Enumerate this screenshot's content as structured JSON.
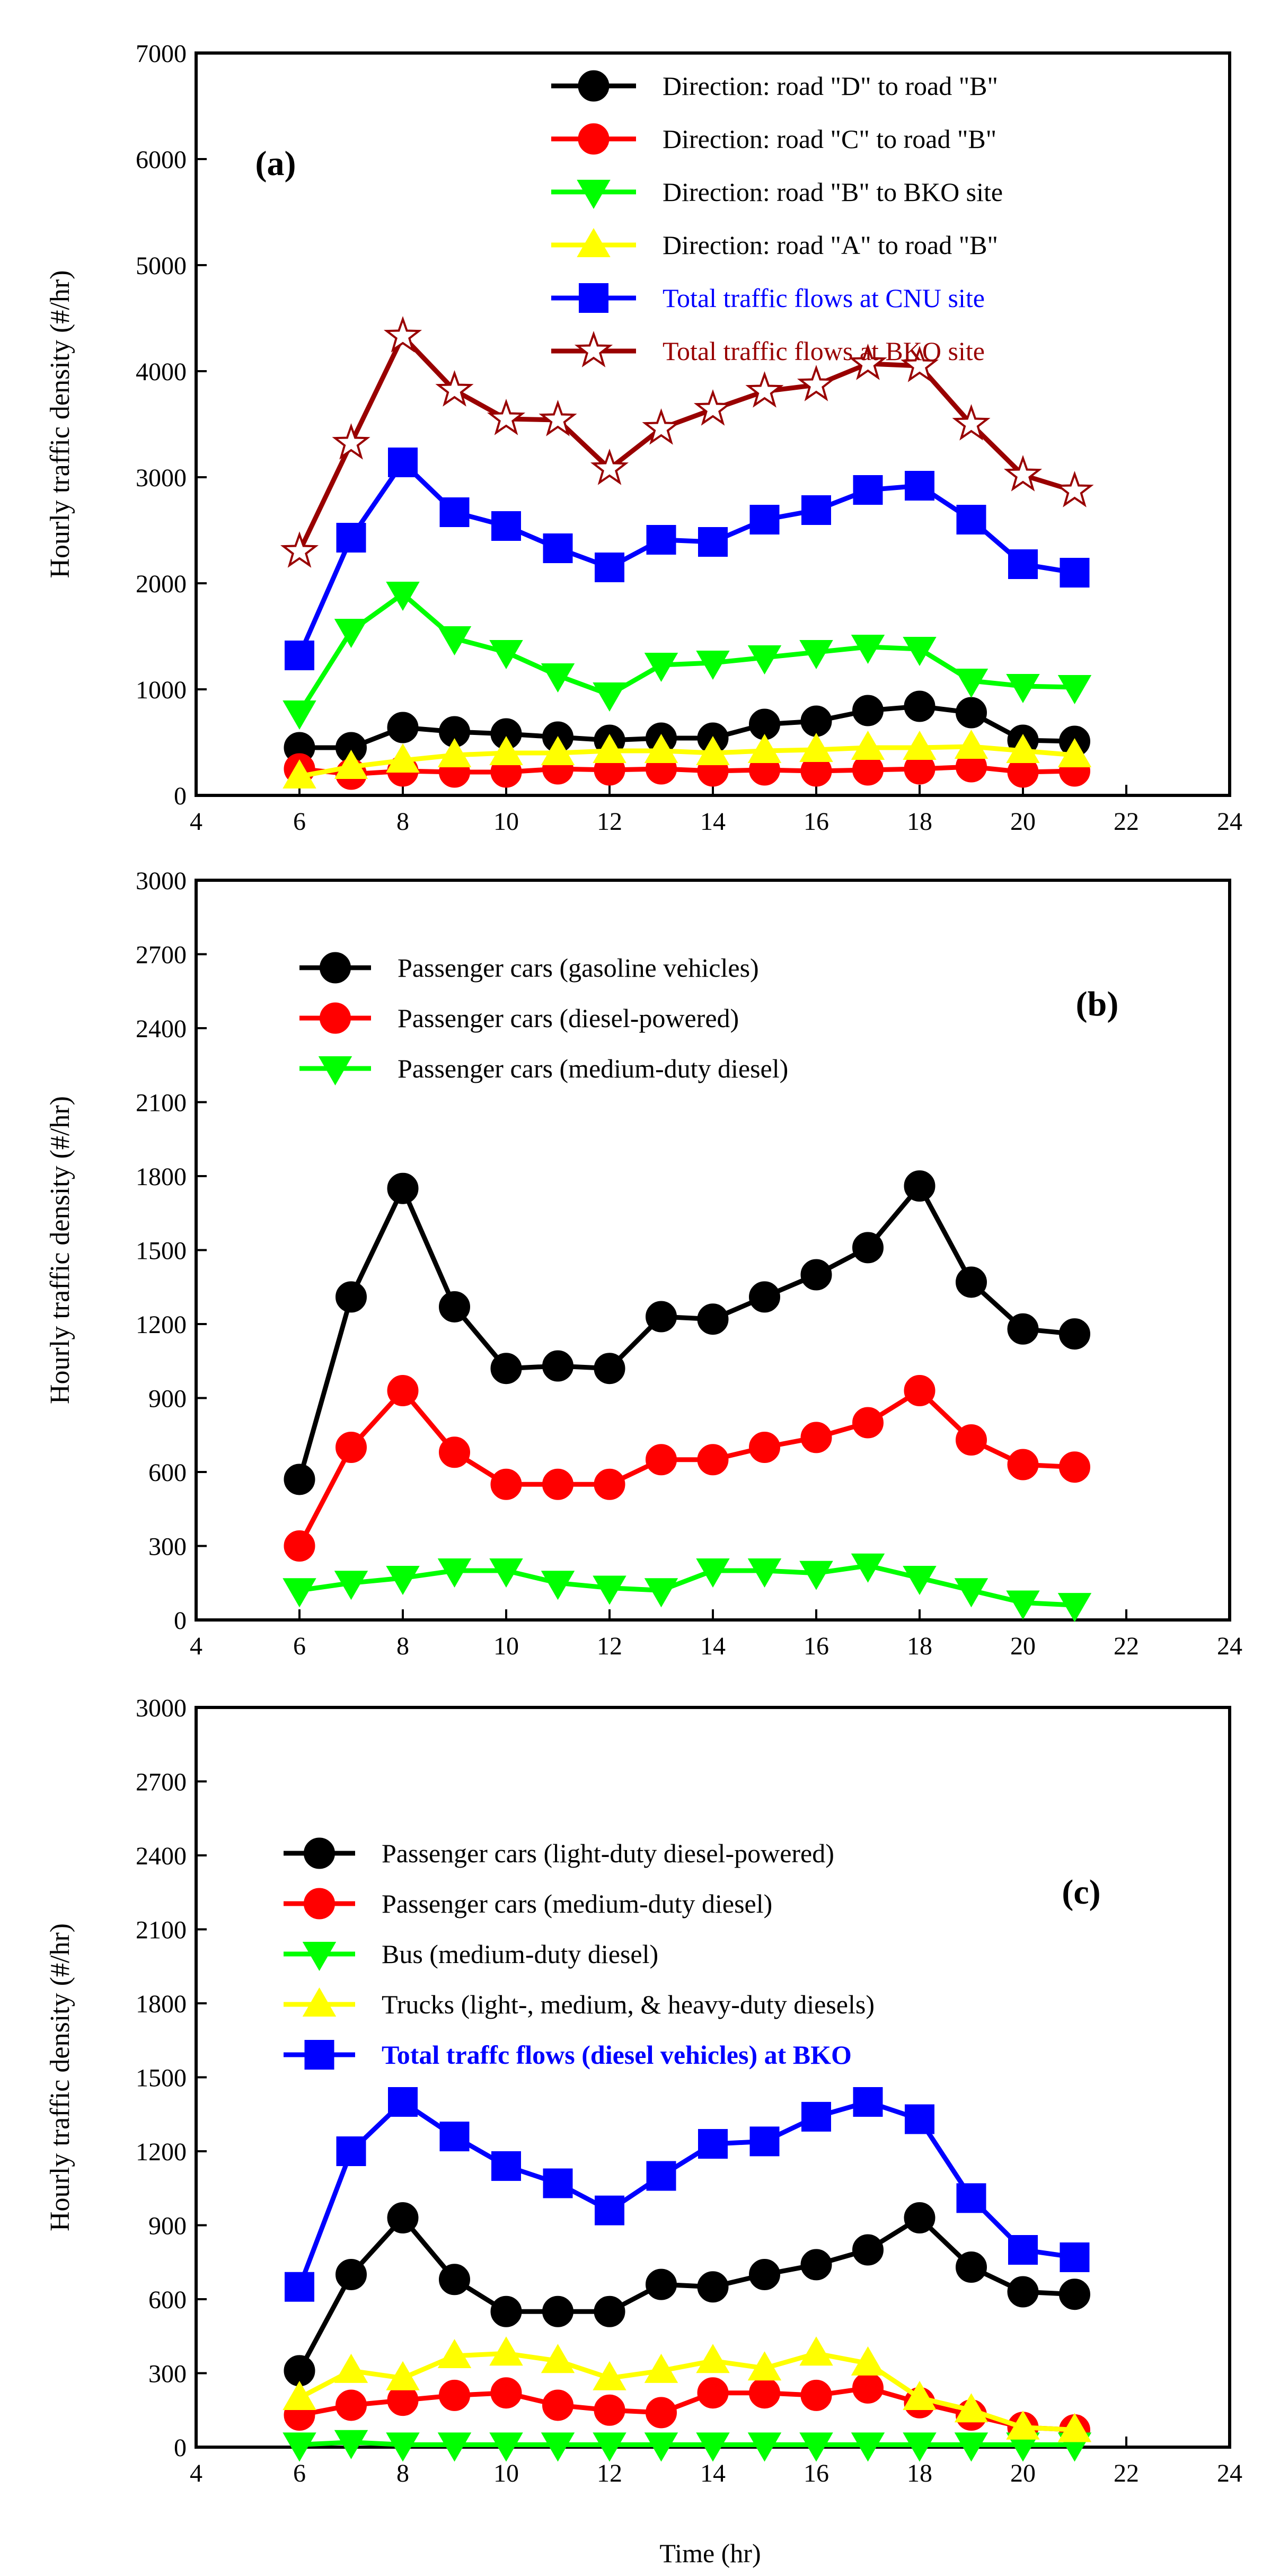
{
  "figure": {
    "x_axis_title": "Time (hr)"
  },
  "chart_data": [
    {
      "type": "line",
      "panel_label": "(a)",
      "xlabel": "",
      "ylabel": "Hourly traffic density (#/hr)",
      "xlim": [
        4,
        24
      ],
      "ylim": [
        0,
        7000
      ],
      "xticks": [
        4,
        6,
        8,
        10,
        12,
        14,
        16,
        18,
        20,
        22,
        24
      ],
      "yticks": [
        0,
        1000,
        2000,
        3000,
        4000,
        5000,
        6000,
        7000
      ],
      "x": [
        6,
        7,
        8,
        9,
        10,
        11,
        12,
        13,
        14,
        15,
        16,
        17,
        18,
        19,
        20,
        21
      ],
      "legend_position": "top-right",
      "series": [
        {
          "name": "Direction: road \"D\" to road \"B\"",
          "color": "#000000",
          "marker": "circle",
          "label_color": "#000000",
          "values": [
            450,
            450,
            640,
            600,
            580,
            550,
            520,
            540,
            540,
            670,
            700,
            800,
            840,
            780,
            520,
            510
          ]
        },
        {
          "name": "Direction: road \"C\" to road \"B\"",
          "color": "#ff0000",
          "marker": "circle",
          "label_color": "#000000",
          "values": [
            250,
            200,
            230,
            220,
            220,
            250,
            240,
            250,
            230,
            240,
            230,
            240,
            250,
            270,
            220,
            230
          ]
        },
        {
          "name": "Direction: road \"B\" to BKO site",
          "color": "#00ff00",
          "marker": "triangle-down",
          "label_color": "#000000",
          "values": [
            780,
            1550,
            1900,
            1480,
            1350,
            1130,
            950,
            1230,
            1250,
            1300,
            1350,
            1400,
            1380,
            1080,
            1030,
            1020
          ]
        },
        {
          "name": "Direction: road \"A\" to road \"B\"",
          "color": "#ffff00",
          "marker": "triangle-up",
          "label_color": "#000000",
          "values": [
            180,
            270,
            330,
            380,
            400,
            400,
            420,
            420,
            400,
            420,
            430,
            450,
            450,
            460,
            420,
            380
          ]
        },
        {
          "name": "Total traffic flows at CNU site",
          "color": "#0000ff",
          "marker": "square",
          "label_color": "#0000ff",
          "values": [
            1320,
            2430,
            3140,
            2670,
            2540,
            2330,
            2150,
            2410,
            2390,
            2600,
            2690,
            2880,
            2920,
            2600,
            2180,
            2100
          ]
        },
        {
          "name": "Total traffic flows at BKO site",
          "color": "#990000",
          "marker": "star",
          "label_color": "#990000",
          "values": [
            2300,
            3320,
            4330,
            3820,
            3550,
            3540,
            3080,
            3460,
            3640,
            3810,
            3870,
            4070,
            4050,
            3500,
            3020,
            2870
          ]
        }
      ]
    },
    {
      "type": "line",
      "panel_label": "(b)",
      "xlabel": "",
      "ylabel": "Hourly traffic density (#/hr)",
      "xlim": [
        4,
        24
      ],
      "ylim": [
        0,
        3000
      ],
      "xticks": [
        4,
        6,
        8,
        10,
        12,
        14,
        16,
        18,
        20,
        22,
        24
      ],
      "yticks": [
        0,
        300,
        600,
        900,
        1200,
        1500,
        1800,
        2100,
        2400,
        2700,
        3000
      ],
      "x": [
        6,
        7,
        8,
        9,
        10,
        11,
        12,
        13,
        14,
        15,
        16,
        17,
        18,
        19,
        20,
        21
      ],
      "legend_position": "top-left",
      "series": [
        {
          "name": "Passenger cars (gasoline vehicles)",
          "color": "#000000",
          "marker": "circle",
          "label_color": "#000000",
          "values": [
            570,
            1310,
            1750,
            1270,
            1020,
            1030,
            1020,
            1230,
            1220,
            1310,
            1400,
            1510,
            1760,
            1370,
            1180,
            1160
          ]
        },
        {
          "name": "Passenger cars (diesel-powered)",
          "color": "#ff0000",
          "marker": "circle",
          "label_color": "#000000",
          "values": [
            300,
            700,
            930,
            680,
            550,
            550,
            550,
            650,
            650,
            700,
            740,
            800,
            930,
            730,
            630,
            620
          ]
        },
        {
          "name": "Passenger cars (medium-duty diesel)",
          "color": "#00ff00",
          "marker": "triangle-down",
          "label_color": "#000000",
          "values": [
            120,
            150,
            170,
            200,
            200,
            150,
            130,
            120,
            200,
            200,
            190,
            220,
            170,
            120,
            70,
            60
          ]
        }
      ]
    },
    {
      "type": "line",
      "panel_label": "(c)",
      "xlabel": "Time (hr)",
      "ylabel": "Hourly traffic density (#/hr)",
      "xlim": [
        4,
        24
      ],
      "ylim": [
        0,
        3000
      ],
      "xticks": [
        4,
        6,
        8,
        10,
        12,
        14,
        16,
        18,
        20,
        22,
        24
      ],
      "yticks": [
        0,
        300,
        600,
        900,
        1200,
        1500,
        1800,
        2100,
        2400,
        2700,
        3000
      ],
      "x": [
        6,
        7,
        8,
        9,
        10,
        11,
        12,
        13,
        14,
        15,
        16,
        17,
        18,
        19,
        20,
        21
      ],
      "legend_position": "top-left",
      "series": [
        {
          "name": "Passenger cars (light-duty diesel-powered)",
          "color": "#000000",
          "marker": "circle",
          "label_color": "#000000",
          "values": [
            310,
            700,
            930,
            680,
            550,
            550,
            550,
            660,
            650,
            700,
            740,
            800,
            930,
            730,
            630,
            620
          ]
        },
        {
          "name": "Passenger cars (medium-duty diesel)",
          "color": "#ff0000",
          "marker": "circle",
          "label_color": "#000000",
          "values": [
            130,
            170,
            190,
            210,
            220,
            170,
            150,
            140,
            220,
            220,
            210,
            240,
            180,
            130,
            80,
            70
          ]
        },
        {
          "name": "Bus (medium-duty diesel)",
          "color": "#00ff00",
          "marker": "triangle-down",
          "label_color": "#000000",
          "values": [
            10,
            20,
            10,
            10,
            10,
            10,
            10,
            10,
            10,
            10,
            10,
            10,
            10,
            10,
            10,
            10
          ]
        },
        {
          "name": "Trucks (light-, medium, & heavy-duty diesels)",
          "color": "#ffff00",
          "marker": "triangle-up",
          "label_color": "#000000",
          "values": [
            200,
            310,
            280,
            370,
            380,
            350,
            280,
            310,
            350,
            320,
            380,
            340,
            200,
            150,
            80,
            70
          ]
        },
        {
          "name": "Total traffc flows (diesel vehicles) at BKO",
          "color": "#0000ff",
          "marker": "square",
          "label_color": "#0000ff",
          "label_bold": true,
          "values": [
            650,
            1200,
            1400,
            1260,
            1140,
            1070,
            960,
            1100,
            1230,
            1240,
            1340,
            1400,
            1330,
            1010,
            800,
            770
          ]
        }
      ]
    }
  ]
}
